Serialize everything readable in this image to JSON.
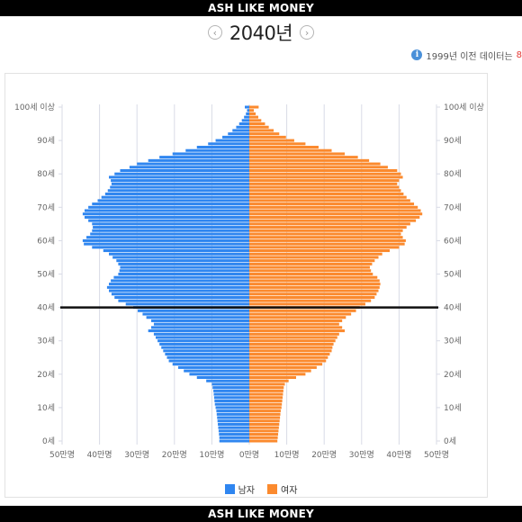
{
  "banner": {
    "top_text": "ASH LIKE MONEY",
    "bottom_text": "ASH LIKE MONEY"
  },
  "nav": {
    "year_label": "2040년",
    "prev_icon": "chevron-left-icon",
    "next_icon": "chevron-right-icon"
  },
  "notice": {
    "icon": "info-icon",
    "text": "1999년 이전 데이터는 ",
    "highlight": "8"
  },
  "colors": {
    "male": "#2f86f0",
    "female": "#fb8a2e",
    "grid": "#d8dbe6",
    "marker": "#111111",
    "axis_text": "#666666"
  },
  "chart_data": {
    "type": "bar",
    "orientation": "horizontal-pyramid",
    "title": "",
    "unit": "명",
    "age_min": 0,
    "age_max": 100,
    "x_range": [
      -500000,
      500000
    ],
    "x_ticks": [
      "50만명",
      "40만명",
      "30만명",
      "20만명",
      "10만명",
      "0만명",
      "10만명",
      "20만명",
      "30만명",
      "40만명",
      "50만명"
    ],
    "y_ticks": [
      "0세",
      "10세",
      "20세",
      "30세",
      "40세",
      "50세",
      "60세",
      "70세",
      "80세",
      "90세",
      "100세 이상"
    ],
    "highlight_age": 40,
    "grid": true,
    "legend_position": "bottom-center",
    "series": [
      {
        "name": "남자",
        "color": "#2f86f0",
        "values": [
          80000,
          80000,
          81000,
          82000,
          83000,
          84000,
          85000,
          86000,
          87000,
          88000,
          90000,
          92000,
          93000,
          94000,
          95000,
          96000,
          98000,
          100000,
          115000,
          140000,
          160000,
          175000,
          190000,
          205000,
          215000,
          220000,
          225000,
          230000,
          235000,
          240000,
          245000,
          250000,
          255000,
          270000,
          262000,
          255000,
          262000,
          275000,
          285000,
          298000,
          310000,
          330000,
          350000,
          360000,
          368000,
          375000,
          380000,
          375000,
          370000,
          362000,
          350000,
          347000,
          345000,
          350000,
          355000,
          365000,
          375000,
          390000,
          420000,
          442000,
          445000,
          435000,
          425000,
          420000,
          418000,
          420000,
          430000,
          440000,
          445000,
          440000,
          430000,
          420000,
          405000,
          395000,
          385000,
          378000,
          372000,
          368000,
          370000,
          375000,
          360000,
          345000,
          320000,
          300000,
          270000,
          240000,
          205000,
          170000,
          140000,
          110000,
          90000,
          72000,
          57000,
          45000,
          35000,
          27000,
          20000,
          14000,
          9000,
          6000,
          12000
        ]
      },
      {
        "name": "여자",
        "color": "#fb8a2e",
        "values": [
          75000,
          76000,
          77000,
          78000,
          79000,
          80000,
          81000,
          82000,
          83000,
          84000,
          86000,
          87000,
          88000,
          89000,
          90000,
          91000,
          92000,
          95000,
          105000,
          125000,
          150000,
          165000,
          180000,
          195000,
          205000,
          210000,
          215000,
          220000,
          222000,
          225000,
          230000,
          235000,
          240000,
          255000,
          248000,
          240000,
          248000,
          258000,
          272000,
          285000,
          295000,
          310000,
          325000,
          335000,
          340000,
          345000,
          348000,
          350000,
          348000,
          342000,
          330000,
          325000,
          322000,
          328000,
          335000,
          345000,
          355000,
          375000,
          400000,
          415000,
          418000,
          410000,
          405000,
          410000,
          420000,
          430000,
          445000,
          455000,
          462000,
          458000,
          450000,
          440000,
          430000,
          420000,
          412000,
          405000,
          400000,
          395000,
          400000,
          410000,
          405000,
          395000,
          370000,
          350000,
          320000,
          290000,
          255000,
          220000,
          185000,
          150000,
          120000,
          98000,
          80000,
          65000,
          52000,
          42000,
          32000,
          24000,
          17000,
          12000,
          25000
        ]
      }
    ]
  },
  "legend": [
    {
      "label": "남자",
      "color": "#2f86f0"
    },
    {
      "label": "여자",
      "color": "#fb8a2e"
    }
  ]
}
